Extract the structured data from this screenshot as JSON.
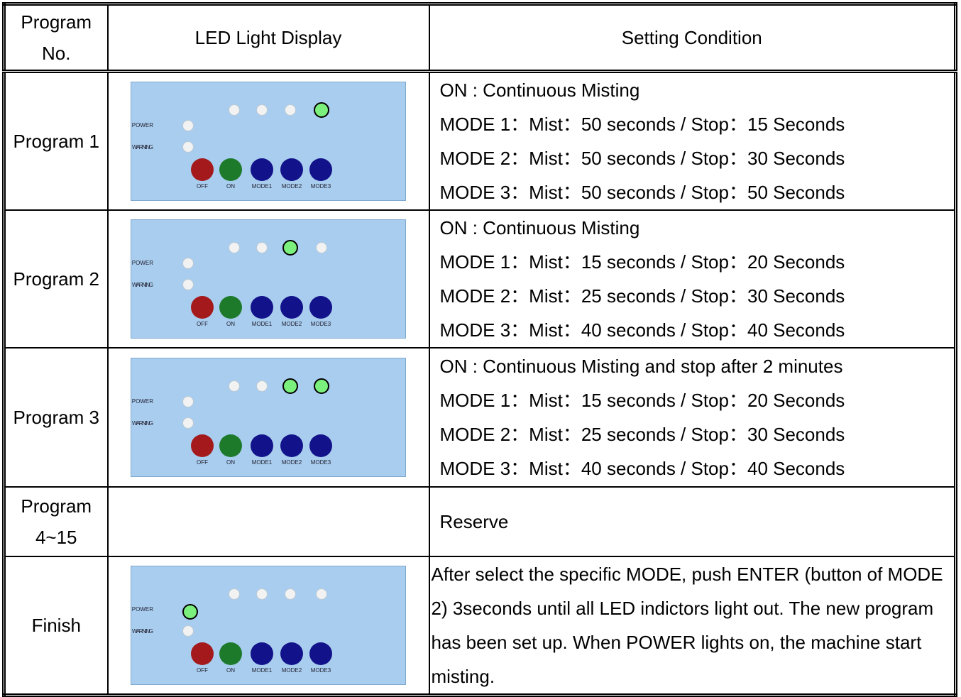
{
  "header": {
    "program_no": "Program No.",
    "led_display": "LED Light Display",
    "setting_condition": "Setting Condition"
  },
  "panel_labels": {
    "power": "POWER",
    "warning": "WARNING",
    "off": "OFF",
    "on": "ON",
    "mode1": "MODE1",
    "mode2": "MODE2",
    "mode3": "MODE3"
  },
  "rows": [
    {
      "program": "Program 1",
      "settings": [
        "ON : Continuous Misting",
        "MODE 1：Mist：50 seconds / Stop：15 Seconds",
        "MODE 2：Mist：50 seconds / Stop：30 Seconds",
        "MODE 3：Mist：50 seconds / Stop：50 Seconds"
      ]
    },
    {
      "program": "Program 2",
      "settings": [
        "ON : Continuous Misting",
        "MODE 1：Mist：15 seconds / Stop：20 Seconds",
        "MODE 2：Mist：25 seconds / Stop：30 Seconds",
        "MODE 3：Mist：40 seconds / Stop：40 Seconds"
      ]
    },
    {
      "program": "Program 3",
      "settings": [
        "ON : Continuous Misting and stop after 2 minutes",
        "MODE 1：Mist：15 seconds / Stop：20 Seconds",
        "MODE 2：Mist：25 seconds / Stop：30 Seconds",
        "MODE 3：Mist：40 seconds / Stop：40 Seconds"
      ]
    },
    {
      "program": "Program 4~15",
      "settings": [
        "Reserve"
      ]
    },
    {
      "program": "Finish",
      "settings": [
        "After select the specific MODE, push ENTER (button of MODE 2) 3seconds until all LED indictors light out. The new program has been set up. When POWER lights on, the machine start misting."
      ]
    }
  ]
}
